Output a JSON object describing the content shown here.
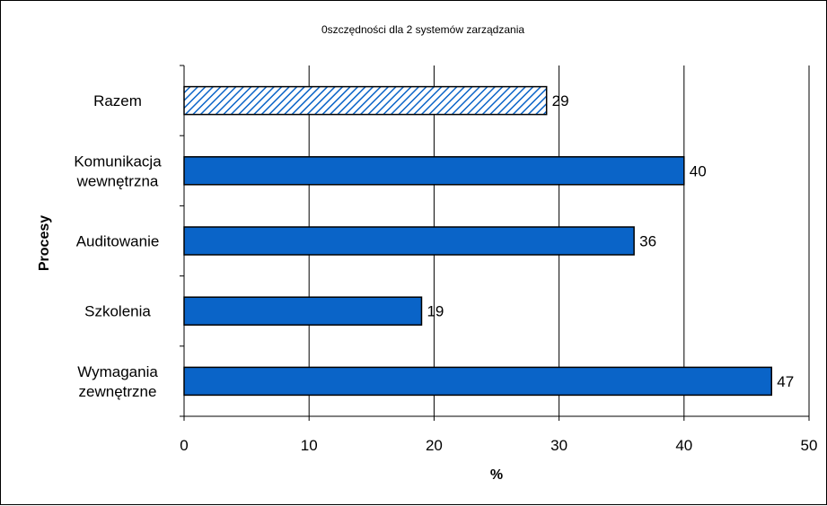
{
  "chart_data": {
    "type": "bar",
    "orientation": "horizontal",
    "title": "0szczędności dla 2 systemów zarządzania",
    "xlabel": "%",
    "ylabel": "Procesy",
    "categories": [
      "Razem",
      "Komunikacja wewnętrzna",
      "Auditowanie",
      "Szkolenia",
      "Wymagania zewnętrzne"
    ],
    "category_lines": [
      [
        "Razem"
      ],
      [
        "Komunikacja",
        "wewnętrzna"
      ],
      [
        "Auditowanie"
      ],
      [
        "Szkolenia"
      ],
      [
        "Wymagania",
        "zewnętrzne"
      ]
    ],
    "values": [
      29,
      40,
      36,
      19,
      47
    ],
    "data_labels": [
      "29",
      "40",
      "36",
      "19",
      "47"
    ],
    "xlim": [
      0,
      50
    ],
    "x_ticks": [
      0,
      10,
      20,
      30,
      40,
      50
    ],
    "x_tick_labels": [
      "0",
      "10",
      "20",
      "30",
      "40",
      "50"
    ],
    "grid": "vertical",
    "legend": "none",
    "colors": {
      "bar": "#0a64c8",
      "hatch": "#0a64c8",
      "hatch_bg": "#ffffff",
      "grid": "#000000"
    },
    "bar_styles": [
      "hatched",
      "solid",
      "solid",
      "solid",
      "solid"
    ]
  }
}
